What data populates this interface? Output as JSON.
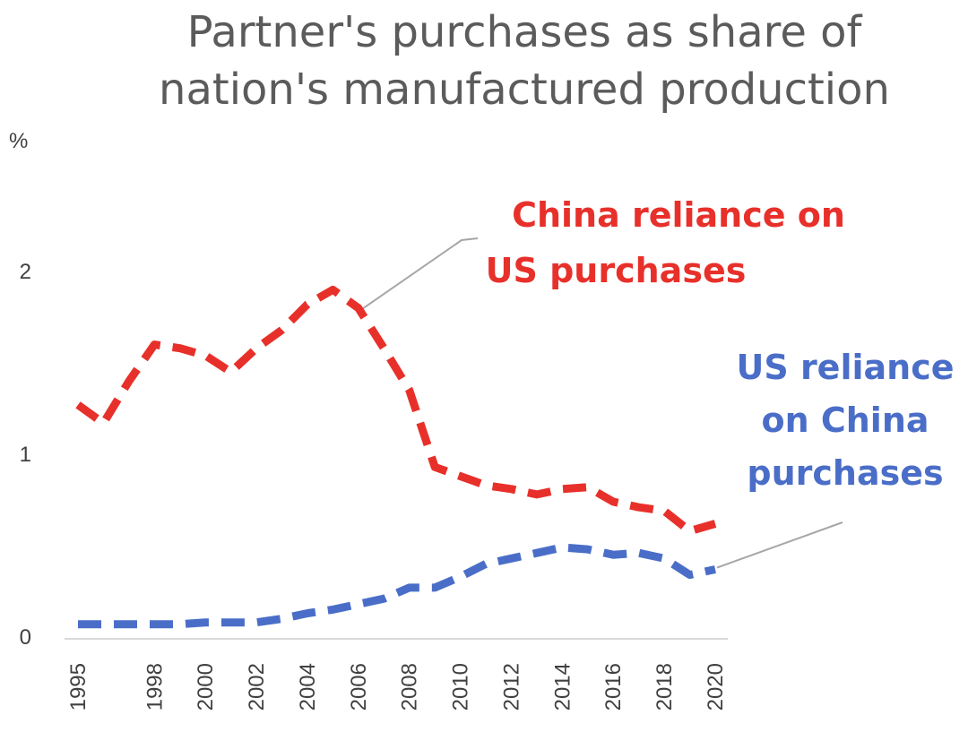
{
  "chart_data": {
    "type": "line",
    "title_lines": [
      "Partner's purchases as share of",
      "nation's manufactured production"
    ],
    "ylabel": "%",
    "xlabel": "",
    "ylim": [
      0,
      2
    ],
    "y_ticks": [
      "0",
      "1",
      "2"
    ],
    "x_ticks": [
      "1995",
      "1998",
      "2000",
      "2002",
      "2004",
      "2006",
      "2008",
      "2010",
      "2012",
      "2014",
      "2016",
      "2018",
      "2020"
    ],
    "x": [
      1995,
      1996,
      1997,
      1998,
      1999,
      2000,
      2001,
      2002,
      2003,
      2004,
      2005,
      2006,
      2007,
      2008,
      2009,
      2010,
      2011,
      2012,
      2013,
      2014,
      2015,
      2016,
      2017,
      2018,
      2019,
      2020
    ],
    "grid": false,
    "legend": "none",
    "series": [
      {
        "name": "China reliance on US purchases",
        "label_lines": [
          "China reliance on",
          "US purchases"
        ],
        "color": "#e8302b",
        "style": "dashed",
        "values": [
          1.27,
          1.17,
          1.4,
          1.6,
          1.58,
          1.54,
          1.45,
          1.58,
          1.68,
          1.82,
          1.9,
          1.8,
          1.58,
          1.35,
          0.93,
          0.88,
          0.83,
          0.81,
          0.78,
          0.81,
          0.82,
          0.74,
          0.71,
          0.69,
          0.58,
          0.62
        ]
      },
      {
        "name": "US reliance on China purchases",
        "label_lines": [
          "US reliance",
          "on China",
          "purchases"
        ],
        "color": "#4a6ec8",
        "style": "dashed",
        "values": [
          0.07,
          0.07,
          0.07,
          0.07,
          0.07,
          0.08,
          0.08,
          0.08,
          0.1,
          0.13,
          0.15,
          0.18,
          0.21,
          0.27,
          0.27,
          0.33,
          0.4,
          0.43,
          0.46,
          0.49,
          0.48,
          0.45,
          0.46,
          0.43,
          0.34,
          0.37
        ]
      }
    ]
  }
}
